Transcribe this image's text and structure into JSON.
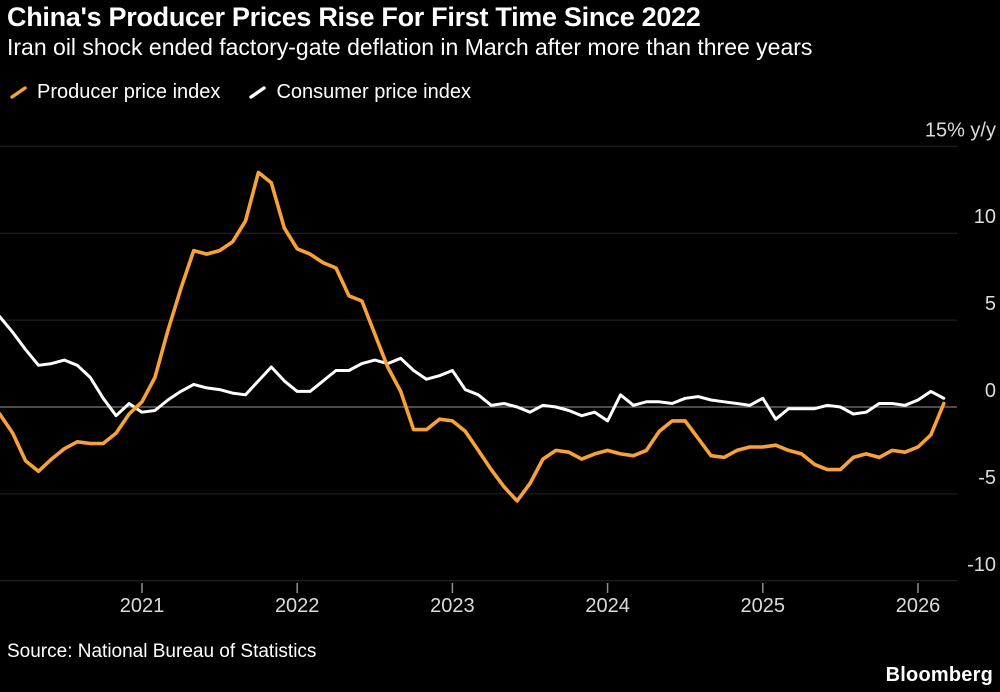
{
  "header": {
    "title": "China's Producer Prices Rise For First Time Since 2022",
    "subtitle": "Iran oil shock ended factory-gate deflation in March after more than three years"
  },
  "legend": {
    "items": [
      {
        "label": "Producer price index",
        "color": "#F7A139"
      },
      {
        "label": "Consumer price index",
        "color": "#FFFFFF"
      }
    ]
  },
  "footer": {
    "source": "Source: National Bureau of Statistics",
    "brand": "Bloomberg"
  },
  "colors": {
    "background": "#000000",
    "producer_line": "#F7A139",
    "consumer_line": "#FFFFFF",
    "zero_line": "#999999",
    "axis_text": "#DCDCDC"
  },
  "chart_data": {
    "type": "line",
    "title": "China's Producer Prices Rise For First Time Since 2022",
    "subtitle": "Iran oil shock ended factory-gate deflation in March after more than three years",
    "unit": "% y/y",
    "x_start": "2020-01",
    "x_frequency": "monthly",
    "x_tick_labels": [
      "2021",
      "2022",
      "2023",
      "2024",
      "2025",
      "2026"
    ],
    "y_ticks": [
      15,
      10,
      5,
      0,
      -5,
      -10
    ],
    "y_tick_labels": [
      "15% y/y",
      "10",
      "5",
      "0",
      "-5",
      "-10"
    ],
    "ylim": [
      -11.5,
      15.8
    ],
    "grid": "horizontal",
    "legend_position": "top-left",
    "series": [
      {
        "name": "Producer price index",
        "color": "#F7A139",
        "values": [
          0.1,
          -0.4,
          -1.5,
          -3.1,
          -3.7,
          -3.0,
          -2.4,
          -2.0,
          -2.1,
          -2.1,
          -1.5,
          -0.4,
          0.3,
          1.7,
          4.4,
          6.8,
          9.0,
          8.8,
          9.0,
          9.5,
          10.7,
          13.5,
          12.9,
          10.3,
          9.1,
          8.8,
          8.3,
          8.0,
          6.4,
          6.1,
          4.2,
          2.3,
          0.9,
          -1.3,
          -1.3,
          -0.7,
          -0.8,
          -1.4,
          -2.5,
          -3.6,
          -4.6,
          -5.4,
          -4.4,
          -3.0,
          -2.5,
          -2.6,
          -3.0,
          -2.7,
          -2.5,
          -2.7,
          -2.8,
          -2.5,
          -1.4,
          -0.8,
          -0.8,
          -1.8,
          -2.8,
          -2.9,
          -2.5,
          -2.3,
          -2.3,
          -2.2,
          -2.5,
          -2.7,
          -3.3,
          -3.6,
          -3.6,
          -2.9,
          -2.7,
          -2.9,
          -2.5,
          -2.6,
          -2.3,
          -1.6,
          0.2
        ]
      },
      {
        "name": "Consumer price index",
        "color": "#FFFFFF",
        "values": [
          5.4,
          5.2,
          4.3,
          3.3,
          2.4,
          2.5,
          2.7,
          2.4,
          1.7,
          0.5,
          -0.5,
          0.2,
          -0.3,
          -0.2,
          0.4,
          0.9,
          1.3,
          1.1,
          1.0,
          0.8,
          0.7,
          1.5,
          2.3,
          1.5,
          0.9,
          0.9,
          1.5,
          2.1,
          2.1,
          2.5,
          2.7,
          2.5,
          2.8,
          2.1,
          1.6,
          1.8,
          2.1,
          1.0,
          0.7,
          0.1,
          0.2,
          0.0,
          -0.3,
          0.1,
          0.0,
          -0.2,
          -0.5,
          -0.3,
          -0.8,
          0.7,
          0.1,
          0.3,
          0.3,
          0.2,
          0.5,
          0.6,
          0.4,
          0.3,
          0.2,
          0.1,
          0.5,
          -0.7,
          -0.1,
          -0.1,
          -0.1,
          0.1,
          0.0,
          -0.4,
          -0.3,
          0.2,
          0.2,
          0.1,
          0.4,
          0.9,
          0.5
        ]
      }
    ]
  }
}
